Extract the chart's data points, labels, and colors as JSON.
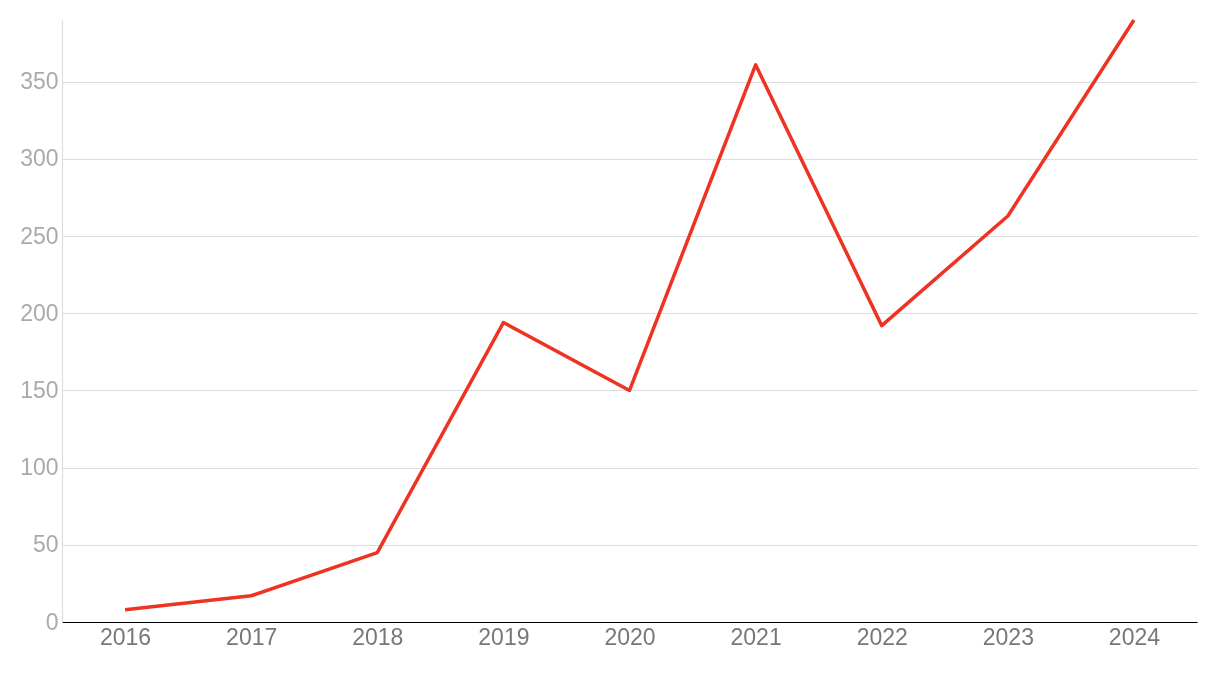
{
  "chart_data": {
    "type": "line",
    "categories": [
      "2016",
      "2017",
      "2018",
      "2019",
      "2020",
      "2021",
      "2022",
      "2023",
      "2024"
    ],
    "series": [
      {
        "color": "#ee3322",
        "values": [
          8,
          17,
          45,
          194,
          150,
          361,
          192,
          263,
          390
        ]
      }
    ],
    "ylim": [
      0,
      390
    ],
    "yticks": [
      0,
      50,
      100,
      150,
      200,
      250,
      300,
      350
    ],
    "grid": "y"
  }
}
